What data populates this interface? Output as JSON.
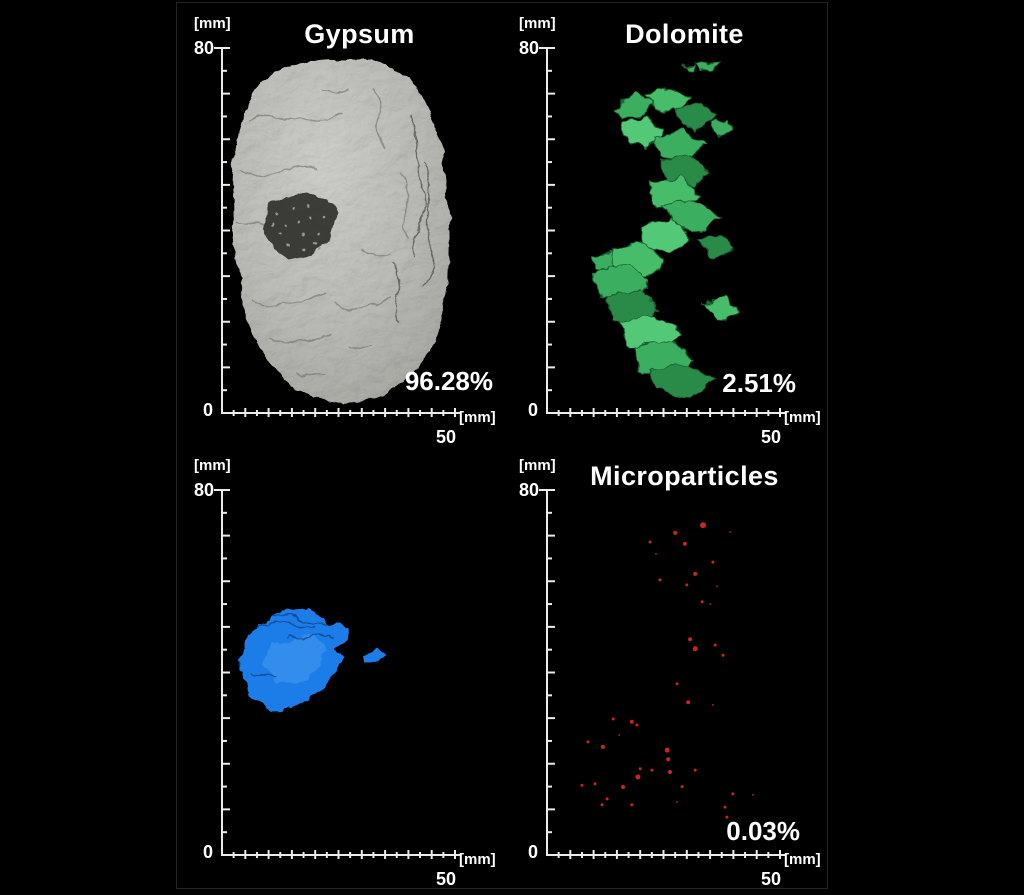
{
  "figure": {
    "background": "#000000",
    "border_color": "#232323",
    "text_color": "#ffffff"
  },
  "chart_data": {
    "type": "other",
    "subtype": "3d-volume-rendering-grid",
    "description": "Four micro-CT 3D volume renderings of mineral phases in a rock sample, each on identical mm axes with volume percentage labels",
    "grid": "2x2",
    "axes": {
      "x_unit_label": "[mm]",
      "y_unit_label": "[mm]",
      "x_range": [
        0,
        50
      ],
      "y_range": [
        0,
        80
      ],
      "x_tick_step": 2.5,
      "y_tick_step": 5,
      "x_max_label": "50",
      "y_max_label": "80",
      "origin_label": "0"
    },
    "panels": [
      {
        "id": "gypsum",
        "position": "top-left",
        "title": "Gypsum",
        "percentage_label": "96.28%",
        "percent": 96.28,
        "color": "#a9aaa6"
      },
      {
        "id": "dolomite",
        "position": "top-right",
        "title": "Dolomite",
        "percentage_label": "2.51%",
        "percent": 2.51,
        "color": "#3aaf5f"
      },
      {
        "id": "blue-phase",
        "position": "bottom-left",
        "title": "",
        "percentage_label": "",
        "color": "#1d7de9"
      },
      {
        "id": "microparticles",
        "position": "bottom-right",
        "title": "Microparticles",
        "percentage_label": "0.03%",
        "percent": 0.03,
        "color": "#c8261f",
        "particles_mm": [
          [
            33.5,
            72.3,
            3
          ],
          [
            27.5,
            70.6,
            2
          ],
          [
            22.1,
            68.6,
            1.5
          ],
          [
            29.6,
            68.2,
            2
          ],
          [
            39.3,
            70.8,
            1
          ],
          [
            35.6,
            64.2,
            1.5
          ],
          [
            31.8,
            61.6,
            2
          ],
          [
            24.2,
            60.3,
            1.5
          ],
          [
            30,
            59.2,
            1.5
          ],
          [
            33.3,
            55.5,
            1.5
          ],
          [
            35,
            55,
            1
          ],
          [
            30.7,
            47.3,
            2
          ],
          [
            31.8,
            45.2,
            2.5
          ],
          [
            36.1,
            46,
            1.5
          ],
          [
            37.8,
            43.8,
            1.5
          ],
          [
            27.9,
            37.5,
            1.5
          ],
          [
            30.3,
            33.5,
            2
          ],
          [
            35.6,
            32.9,
            1
          ],
          [
            14.2,
            29.8,
            1.5
          ],
          [
            18.2,
            29.2,
            2
          ],
          [
            19.3,
            28.5,
            1.5
          ],
          [
            8.8,
            24.8,
            1.5
          ],
          [
            12,
            23.7,
            2
          ],
          [
            25.8,
            23,
            2.5
          ],
          [
            26,
            21,
            2
          ],
          [
            20,
            18.9,
            1.5
          ],
          [
            22.5,
            18.6,
            1.5
          ],
          [
            26.4,
            18.2,
            2
          ],
          [
            31.8,
            18.6,
            1.5
          ],
          [
            7.5,
            15.3,
            1.5
          ],
          [
            10.3,
            15.6,
            1.5
          ],
          [
            16.3,
            14.9,
            2
          ],
          [
            19.5,
            17.1,
            2.5
          ],
          [
            12.9,
            12.3,
            1.5
          ],
          [
            11.8,
            11,
            1.5
          ],
          [
            39.9,
            13.4,
            1.5
          ],
          [
            44.2,
            13.2,
            1
          ],
          [
            18.2,
            11,
            1.5
          ],
          [
            38.2,
            10.5,
            1.5
          ],
          [
            38.6,
            8.3,
            1.5
          ],
          [
            27.9,
            11.6,
            1
          ],
          [
            23.4,
            66,
            1
          ],
          [
            36.5,
            58.9,
            1
          ],
          [
            15.5,
            26.3,
            1
          ],
          [
            29,
            15,
            1.5
          ]
        ]
      }
    ]
  }
}
